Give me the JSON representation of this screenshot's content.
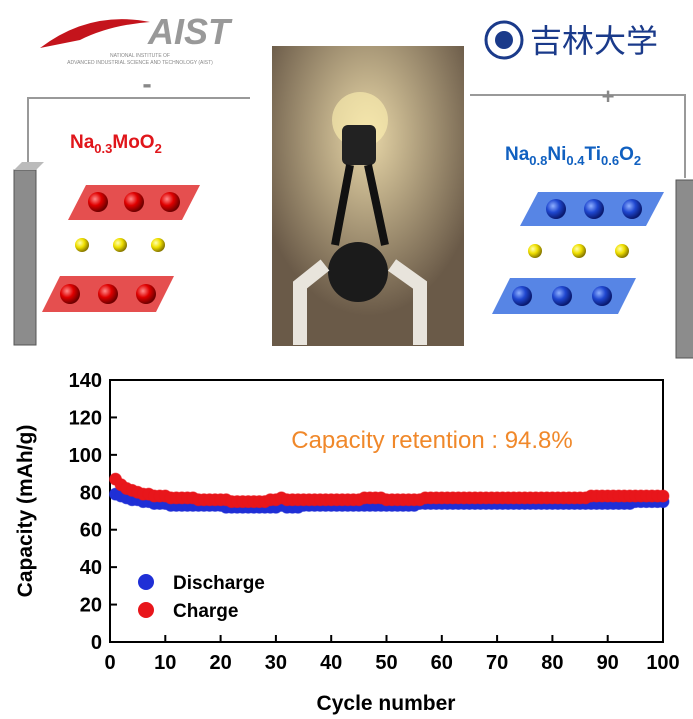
{
  "illustration": {
    "aist_logo": "AIST",
    "aist_subtitle_1": "NATIONAL INSTITUTE OF",
    "aist_subtitle_2": "ADVANCED INDUSTRIAL SCIENCE AND TECHNOLOGY (AIST)",
    "jilin_logo": "吉林大学",
    "anode_sign": "-",
    "cathode_sign": "+",
    "anode_formula": [
      "Na",
      "0.3",
      "MoO",
      "2"
    ],
    "cathode_formula": [
      "Na",
      "0.8",
      "Ni",
      "0.4",
      "Ti",
      "0.6",
      "O",
      "2"
    ]
  },
  "chart_data": {
    "type": "scatter",
    "xlabel": "Cycle number",
    "ylabel": "Capacity (mAh/g)",
    "annotation": "Capacity retention : 94.8%",
    "annotation_color": "#f0882a",
    "xlim": [
      0,
      100
    ],
    "xticks": [
      0,
      10,
      20,
      30,
      40,
      50,
      60,
      70,
      80,
      90,
      100
    ],
    "ylim": [
      0,
      140
    ],
    "yticks": [
      0,
      20,
      40,
      60,
      80,
      100,
      120,
      140
    ],
    "legend": "lower left",
    "x": [
      1,
      2,
      3,
      4,
      5,
      6,
      7,
      8,
      9,
      10,
      11,
      12,
      13,
      14,
      15,
      16,
      17,
      18,
      19,
      20,
      21,
      22,
      23,
      24,
      25,
      26,
      27,
      28,
      29,
      30,
      31,
      32,
      33,
      34,
      35,
      36,
      37,
      38,
      39,
      40,
      41,
      42,
      43,
      44,
      45,
      46,
      47,
      48,
      49,
      50,
      51,
      52,
      53,
      54,
      55,
      56,
      57,
      58,
      59,
      60,
      61,
      62,
      63,
      64,
      65,
      66,
      67,
      68,
      69,
      70,
      71,
      72,
      73,
      74,
      75,
      76,
      77,
      78,
      79,
      80,
      81,
      82,
      83,
      84,
      85,
      86,
      87,
      88,
      89,
      90,
      91,
      92,
      93,
      94,
      95,
      96,
      97,
      98,
      99,
      100
    ],
    "series": [
      {
        "name": "Discharge",
        "color": "#1f2fd6",
        "values": [
          79,
          78,
          77,
          76,
          76,
          75,
          75,
          74,
          74,
          74,
          73,
          73,
          73,
          73,
          73,
          73,
          73,
          73,
          73,
          73,
          72,
          72,
          72,
          72,
          72,
          72,
          72,
          72,
          72,
          72,
          73,
          72,
          72,
          72,
          73,
          73,
          73,
          73,
          73,
          73,
          73,
          73,
          73,
          73,
          73,
          73,
          73,
          73,
          73,
          73,
          73,
          73,
          73,
          73,
          73,
          74,
          74,
          74,
          74,
          74,
          74,
          74,
          74,
          74,
          74,
          74,
          74,
          74,
          74,
          74,
          74,
          74,
          74,
          74,
          74,
          74,
          74,
          74,
          74,
          74,
          74,
          74,
          74,
          74,
          74,
          74,
          74,
          74,
          74,
          74,
          74,
          74,
          74,
          74,
          75,
          75,
          75,
          75,
          75,
          75
        ]
      },
      {
        "name": "Charge",
        "color": "#e8161b",
        "values": [
          87,
          84,
          82,
          81,
          80,
          79,
          79,
          78,
          78,
          78,
          77,
          77,
          77,
          77,
          77,
          76,
          76,
          76,
          76,
          76,
          76,
          75,
          75,
          75,
          75,
          75,
          75,
          75,
          76,
          76,
          77,
          76,
          76,
          76,
          76,
          76,
          76,
          76,
          76,
          76,
          76,
          76,
          76,
          76,
          76,
          77,
          77,
          77,
          77,
          76,
          76,
          76,
          76,
          76,
          76,
          76,
          77,
          77,
          77,
          77,
          77,
          77,
          77,
          77,
          77,
          77,
          77,
          77,
          77,
          77,
          77,
          77,
          77,
          77,
          77,
          77,
          77,
          77,
          77,
          77,
          77,
          77,
          77,
          77,
          77,
          77,
          78,
          78,
          78,
          78,
          78,
          78,
          78,
          78,
          78,
          78,
          78,
          78,
          78,
          78
        ]
      }
    ]
  }
}
